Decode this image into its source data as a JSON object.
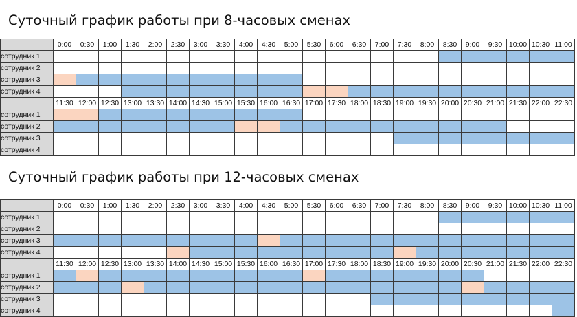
{
  "colors": {
    "work": "#9dc3e6",
    "break": "#fbd5c0",
    "off": "#ffffff",
    "header": "#d9d9d9"
  },
  "legend_codes": "0 = off (white), 1 = work (blue), 2 = break (peach)",
  "times": {
    "a": [
      "0:00",
      "0:30",
      "1:00",
      "1:30",
      "2:00",
      "2:30",
      "3:00",
      "3:30",
      "4:00",
      "4:30",
      "5:00",
      "5:30",
      "6:00",
      "6:30",
      "7:00",
      "7:30",
      "8:00",
      "8:30",
      "9:00",
      "9:30",
      "10:00",
      "10:30",
      "11:00"
    ],
    "b": [
      "11:30",
      "12:00",
      "12:30",
      "13:00",
      "13:30",
      "14:00",
      "14:30",
      "15:00",
      "15:30",
      "16:00",
      "16:30",
      "17:00",
      "17:30",
      "18:00",
      "18:30",
      "19:00",
      "19:30",
      "20:00",
      "20:30",
      "21:00",
      "21:30",
      "22:00",
      "22:30"
    ],
    "b12": [
      "11:30",
      "12:00",
      "12:30",
      "13:00",
      "13:30",
      "14:00",
      "14:30",
      "15:00",
      "15:30",
      "16:00",
      "16:30",
      "17:00",
      "17:30",
      "18:00",
      "18:30",
      "19:00",
      "19:30",
      "20:00",
      "20:30",
      "21:00",
      "21:30",
      "22:00",
      "22:30"
    ]
  },
  "schedules": [
    {
      "title": "Суточный график работы при 8-часовых сменах",
      "blocks": [
        {
          "times_key": "a",
          "rows": [
            {
              "name": "сотрудник 1",
              "cells": "00000000000000000111111111111111111111"
            },
            {
              "name": "сотрудник 2",
              "cells": "00000000000000000000000000000000000000"
            },
            {
              "name": "сотрудник 3",
              "cells": "21111111111000000000000000000000000000"
            },
            {
              "name": "сотрудник 4",
              "cells": "00011111111221111111111100000000000000"
            }
          ]
        },
        {
          "times_key": "b",
          "rows": [
            {
              "name": "сотрудник 1",
              "cells": "22111111111000000000000000000000000000"
            },
            {
              "name": "сотрудник 2",
              "cells": "11111111221111111111000000000000000000"
            },
            {
              "name": "сотрудник 3",
              "cells": "00000000000000011111111111111111111111"
            },
            {
              "name": "сотрудник 4",
              "cells": "00000000000000000000000000000000000000"
            }
          ]
        }
      ]
    },
    {
      "title": "Суточный график работы при 12-часовых сменах",
      "blocks": [
        {
          "times_key": "a",
          "rows": [
            {
              "name": "сотрудник 1",
              "cells": "00000000000000000111111111111111111111"
            },
            {
              "name": "сотрудник 2",
              "cells": "00000000000000000000000000000000000011"
            },
            {
              "name": "сотрудник 3",
              "cells": "11111111121111111111111110000000000000"
            },
            {
              "name": "sотрудник 4",
              "cells": "00000211111111121111111111111111110000"
            }
          ]
        },
        {
          "times_key": "b",
          "rows": [
            {
              "name": "сотрудник 1",
              "cells": "12111111111211111110000000000000000000"
            },
            {
              "name": "сотрудник 2",
              "cells": "11121111111111111121111111111111111111"
            },
            {
              "name": "сотрудник 3",
              "cells": "00000000000000111111111121111111111111"
            },
            {
              "name": "сотрудник 4",
              "cells": "00000000000000000000001111111111111111"
            }
          ]
        }
      ]
    }
  ]
}
